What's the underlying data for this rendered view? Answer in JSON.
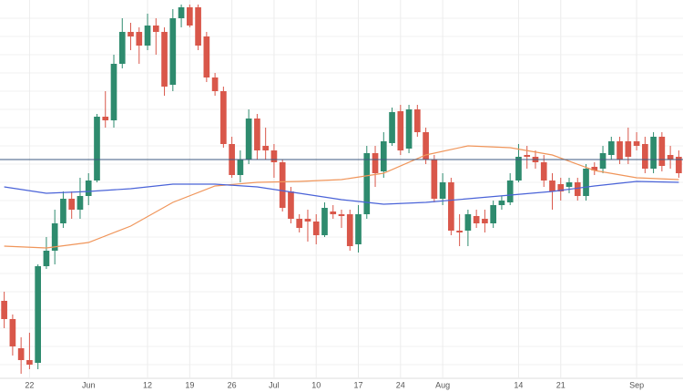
{
  "chart_data": {
    "type": "candlestick",
    "categories": [
      null,
      null,
      null,
      "22",
      null,
      null,
      null,
      null,
      null,
      null,
      "Jun",
      null,
      null,
      null,
      null,
      null,
      null,
      "12",
      null,
      null,
      null,
      null,
      "19",
      null,
      null,
      null,
      null,
      "26",
      null,
      null,
      null,
      null,
      "Jul",
      null,
      null,
      null,
      null,
      "10",
      null,
      null,
      null,
      null,
      "17",
      null,
      null,
      null,
      null,
      "24",
      null,
      null,
      null,
      null,
      "Aug",
      null,
      null,
      null,
      null,
      null,
      null,
      null,
      null,
      "14",
      null,
      null,
      null,
      null,
      "21",
      null,
      null,
      null,
      null,
      null,
      null,
      null,
      null,
      "Sep",
      null,
      null,
      null,
      null,
      null
    ],
    "open": [
      100,
      80,
      48,
      35,
      32,
      138,
      155,
      185,
      212,
      200,
      215,
      232,
      302,
      298,
      360,
      395,
      395,
      380,
      402,
      395,
      337,
      410,
      422,
      422,
      390,
      345,
      330,
      272,
      238,
      255,
      300,
      270,
      265,
      252,
      220,
      190,
      190,
      187,
      172,
      198,
      195,
      195,
      162,
      195,
      262,
      242,
      273,
      308,
      267,
      310,
      285,
      255,
      212,
      230,
      177,
      177,
      193,
      190,
      185,
      205,
      208,
      232,
      260,
      258,
      252,
      232,
      228,
      225,
      230,
      215,
      247,
      245,
      260,
      275,
      275,
      275,
      272,
      245,
      280,
      260,
      258
    ],
    "high": [
      110,
      85,
      60,
      65,
      140,
      170,
      200,
      220,
      220,
      235,
      240,
      305,
      330,
      370,
      410,
      405,
      400,
      415,
      410,
      400,
      420,
      425,
      425,
      425,
      395,
      350,
      335,
      280,
      265,
      310,
      305,
      290,
      272,
      255,
      225,
      195,
      200,
      195,
      208,
      205,
      200,
      200,
      205,
      270,
      270,
      285,
      312,
      315,
      315,
      315,
      290,
      260,
      240,
      235,
      195,
      200,
      200,
      200,
      210,
      215,
      240,
      272,
      270,
      265,
      260,
      240,
      235,
      235,
      235,
      250,
      252,
      270,
      280,
      280,
      290,
      285,
      280,
      285,
      285,
      270,
      265
    ],
    "low": [
      70,
      40,
      20,
      25,
      25,
      135,
      140,
      180,
      190,
      190,
      205,
      230,
      290,
      290,
      355,
      375,
      360,
      375,
      370,
      325,
      330,
      400,
      400,
      375,
      340,
      325,
      268,
      235,
      230,
      250,
      255,
      255,
      235,
      198,
      185,
      175,
      165,
      162,
      170,
      190,
      180,
      155,
      153,
      190,
      225,
      235,
      270,
      260,
      262,
      280,
      250,
      208,
      205,
      172,
      160,
      160,
      180,
      175,
      180,
      200,
      205,
      230,
      245,
      245,
      225,
      200,
      210,
      218,
      210,
      210,
      238,
      240,
      255,
      250,
      250,
      265,
      240,
      240,
      242,
      245,
      235
    ],
    "close": [
      80,
      50,
      35,
      30,
      138,
      155,
      185,
      212,
      200,
      215,
      232,
      302,
      298,
      360,
      395,
      390,
      380,
      402,
      395,
      335,
      410,
      422,
      402,
      380,
      345,
      330,
      272,
      238,
      255,
      300,
      265,
      265,
      252,
      202,
      190,
      180,
      187,
      172,
      202,
      195,
      193,
      160,
      195,
      262,
      240,
      275,
      307,
      265,
      310,
      285,
      255,
      212,
      230,
      177,
      175,
      195,
      185,
      185,
      205,
      210,
      232,
      258,
      258,
      252,
      232,
      220,
      220,
      230,
      215,
      245,
      243,
      262,
      275,
      255,
      258,
      270,
      245,
      280,
      248,
      255,
      240
    ],
    "up_color": "#2e8b6e",
    "down_color": "#d9574a",
    "lines": [
      {
        "color": "#f0955a",
        "x": [
          0,
          5,
          10,
          15,
          20,
          25,
          30,
          35,
          40,
          45,
          50,
          55,
          60,
          65,
          70,
          75,
          80
        ],
        "values": [
          160,
          158,
          164,
          182,
          208,
          226,
          230,
          231,
          233,
          240,
          260,
          270,
          268,
          260,
          243,
          235,
          233
        ]
      },
      {
        "color": "#4a63d8",
        "x": [
          0,
          5,
          10,
          15,
          20,
          25,
          30,
          35,
          40,
          45,
          50,
          55,
          60,
          65,
          70,
          75,
          80
        ],
        "values": [
          225,
          218,
          220,
          223,
          228,
          228,
          225,
          218,
          211,
          206,
          208,
          212,
          216,
          220,
          226,
          231,
          230
        ]
      }
    ],
    "hline": {
      "value": 255,
      "color": "#3d5a80"
    },
    "ylim": [
      20,
      430
    ],
    "grid": true
  }
}
